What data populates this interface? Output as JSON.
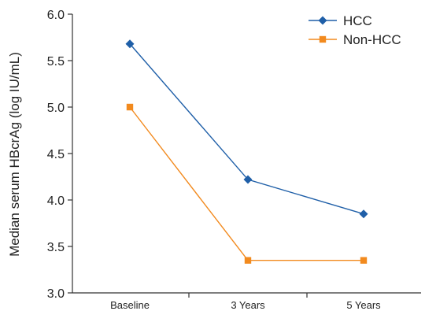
{
  "chart_data": {
    "type": "line",
    "categories": [
      "Baseline",
      "3 Years",
      "5 Years"
    ],
    "ylabel": "Median serum HBcrAg (log IU/mL)",
    "xlabel": "",
    "ylim": [
      3.0,
      6.0
    ],
    "yticks": [
      "3.0",
      "3.5",
      "4.0",
      "4.5",
      "5.0",
      "5.5",
      "6.0"
    ],
    "grid": false,
    "legend_position": "top-right",
    "series": [
      {
        "name": "HCC",
        "values": [
          5.68,
          4.22,
          3.85
        ],
        "color": "#1f5fa8",
        "marker": "diamond"
      },
      {
        "name": "Non-HCC",
        "values": [
          5.0,
          3.35,
          3.35
        ],
        "color": "#f28a1e",
        "marker": "square"
      }
    ]
  }
}
